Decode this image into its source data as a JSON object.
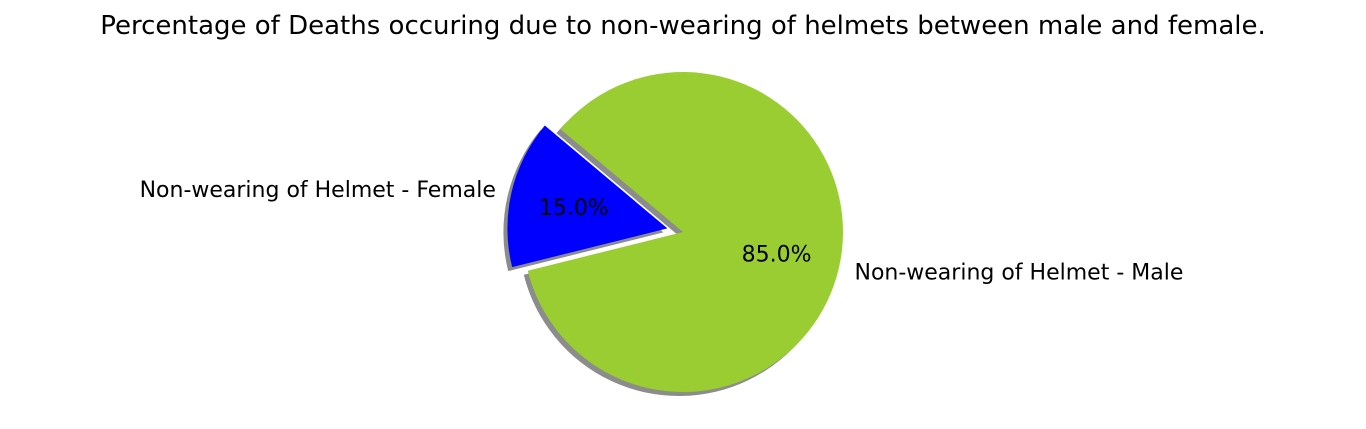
{
  "chart_data": {
    "type": "pie",
    "title": "Percentage of Deaths occuring due to non-wearing of helmets between male and female.",
    "slices": [
      {
        "name": "Non-wearing of Helmet - Male",
        "value": 85.0,
        "label": "85.0%",
        "color": "#9acd32",
        "explode": false
      },
      {
        "name": "Non-wearing of Helmet - Female",
        "value": 15.0,
        "label": "15.0%",
        "color": "#0000ff",
        "explode": true
      }
    ],
    "start_angle_deg": 140,
    "shadow": true
  }
}
